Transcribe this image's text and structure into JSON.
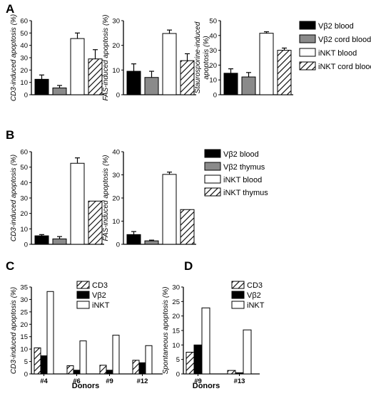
{
  "panels": {
    "A": "A",
    "B": "B",
    "C": "C",
    "D": "D"
  },
  "colors": {
    "black": "#000000",
    "gray": "#8a8a8a",
    "white": "#ffffff",
    "hatch": "#000000"
  },
  "chart_data": [
    {
      "id": "A1",
      "panel": "A",
      "type": "bar",
      "ylabel": "CD3-induced apoptosis (%)",
      "ylim": [
        0,
        60
      ],
      "yticks": [
        0,
        10,
        20,
        30,
        40,
        50,
        60
      ],
      "series": [
        {
          "name": "Vβ2 blood",
          "value": 12.5,
          "error": 3.5,
          "fill": "black"
        },
        {
          "name": "Vβ2 cord blood",
          "value": 5.5,
          "error": 2,
          "fill": "gray"
        },
        {
          "name": "iNKT blood",
          "value": 45.5,
          "error": 4.5,
          "fill": "white"
        },
        {
          "name": "iNKT cord blood",
          "value": 29,
          "error": 7.5,
          "fill": "hatch"
        }
      ]
    },
    {
      "id": "A2",
      "panel": "A",
      "type": "bar",
      "ylabel": "FAS-induced apoptosis (%)",
      "ylim": [
        0,
        30
      ],
      "yticks": [
        0,
        10,
        20,
        30
      ],
      "series": [
        {
          "name": "Vβ2 blood",
          "value": 9.5,
          "error": 3,
          "fill": "black"
        },
        {
          "name": "Vβ2 cord blood",
          "value": 7,
          "error": 2.5,
          "fill": "gray"
        },
        {
          "name": "iNKT blood",
          "value": 24.8,
          "error": 1.4,
          "fill": "white"
        },
        {
          "name": "iNKT cord blood",
          "value": 13.8,
          "error": 2.8,
          "fill": "hatch"
        }
      ]
    },
    {
      "id": "A3",
      "panel": "A",
      "type": "bar",
      "ylabel": "Staurosporine-induced apoptosis (%)",
      "ylim": [
        0,
        50
      ],
      "yticks": [
        0,
        10,
        20,
        30,
        40,
        50
      ],
      "series": [
        {
          "name": "Vβ2 blood",
          "value": 14.5,
          "error": 3,
          "fill": "black"
        },
        {
          "name": "Vβ2 cord blood",
          "value": 12,
          "error": 3,
          "fill": "gray"
        },
        {
          "name": "iNKT blood",
          "value": 41.5,
          "error": 1,
          "fill": "white"
        },
        {
          "name": "iNKT cord blood",
          "value": 30,
          "error": 1.5,
          "fill": "hatch"
        }
      ],
      "legend": [
        "Vβ2 blood",
        "Vβ2 cord blood",
        "iNKT blood",
        "iNKT cord blood"
      ]
    },
    {
      "id": "B1",
      "panel": "B",
      "type": "bar",
      "ylabel": "CD3-induced apoptosis (%)",
      "ylim": [
        0,
        60
      ],
      "yticks": [
        0,
        10,
        20,
        30,
        40,
        50,
        60
      ],
      "series": [
        {
          "name": "Vβ2 blood",
          "value": 5.5,
          "error": 0.8,
          "fill": "black"
        },
        {
          "name": "Vβ2 thymus",
          "value": 3.5,
          "error": 1.5,
          "fill": "gray"
        },
        {
          "name": "iNKT blood",
          "value": 52.5,
          "error": 3.5,
          "fill": "white"
        },
        {
          "name": "iNKT thymus",
          "value": 28,
          "error": 0,
          "fill": "hatch"
        }
      ]
    },
    {
      "id": "B2",
      "panel": "B",
      "type": "bar",
      "ylabel": "FAS-induced apoptosis (%)",
      "ylim": [
        0,
        40
      ],
      "yticks": [
        0,
        10,
        20,
        30,
        40
      ],
      "series": [
        {
          "name": "Vβ2 blood",
          "value": 4.2,
          "error": 1.3,
          "fill": "black"
        },
        {
          "name": "Vβ2 thymus",
          "value": 1.5,
          "error": 0.3,
          "fill": "gray"
        },
        {
          "name": "iNKT blood",
          "value": 30.2,
          "error": 1,
          "fill": "white"
        },
        {
          "name": "iNKT thymus",
          "value": 15,
          "error": 0,
          "fill": "hatch"
        }
      ],
      "legend": [
        "Vβ2 blood",
        "Vβ2 thymus",
        "iNKT blood",
        "iNKT thymus"
      ]
    },
    {
      "id": "C",
      "panel": "C",
      "type": "bar",
      "ylabel": "CD3-induced apoptosis (%)",
      "xlabel": "Donors",
      "ylim": [
        0,
        35
      ],
      "yticks": [
        0,
        5,
        10,
        15,
        20,
        25,
        30,
        35
      ],
      "categories": [
        "#4",
        "#6",
        "#9",
        "#12"
      ],
      "series": [
        {
          "name": "CD3",
          "values": [
            10.5,
            3.3,
            3.5,
            5.5
          ],
          "fill": "hatch"
        },
        {
          "name": "Vβ2",
          "values": [
            7.3,
            1.5,
            1.5,
            4.5
          ],
          "fill": "black"
        },
        {
          "name": "iNKT",
          "values": [
            33.2,
            13.3,
            15.6,
            11.4
          ],
          "fill": "white"
        }
      ],
      "legend": [
        "CD3",
        "Vβ2",
        "iNKT"
      ]
    },
    {
      "id": "D",
      "panel": "D",
      "type": "bar",
      "ylabel": "Spontaneous apoptosis (%)",
      "xlabel": "Donors",
      "ylim": [
        0,
        30
      ],
      "yticks": [
        0,
        5,
        10,
        15,
        20,
        25,
        30
      ],
      "categories": [
        "#9",
        "#13"
      ],
      "series": [
        {
          "name": "CD3",
          "values": [
            7.5,
            1.2
          ],
          "fill": "hatch"
        },
        {
          "name": "Vβ2",
          "values": [
            10,
            0.4
          ],
          "fill": "black"
        },
        {
          "name": "iNKT",
          "values": [
            22.8,
            15.2
          ],
          "fill": "white"
        }
      ],
      "legend": [
        "CD3",
        "Vβ2",
        "iNKT"
      ]
    }
  ]
}
